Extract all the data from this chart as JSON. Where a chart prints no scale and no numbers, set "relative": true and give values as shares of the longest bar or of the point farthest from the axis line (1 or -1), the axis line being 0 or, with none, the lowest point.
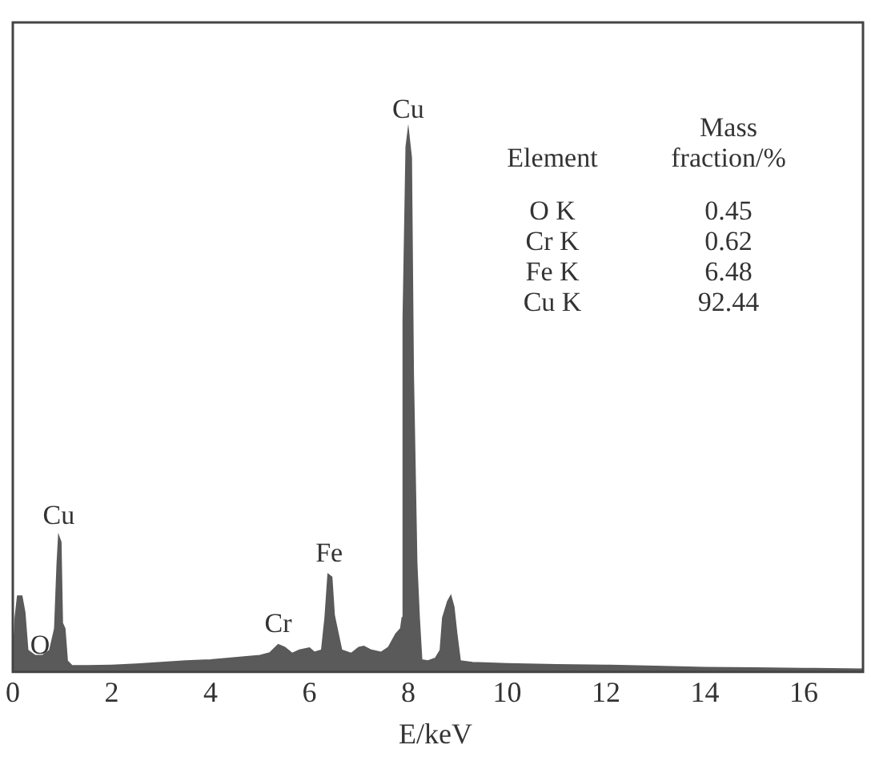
{
  "chart_data": {
    "type": "area",
    "xlabel": "E/keV",
    "relative": true,
    "tick_labels": "x",
    "xlim": [
      0,
      17.2
    ],
    "xticks": [
      0,
      2,
      4,
      6,
      8,
      10,
      12,
      14,
      16
    ],
    "series": [
      {
        "color": "#5a5a5a",
        "x": [
          0,
          0.05,
          0.1,
          0.18,
          0.24,
          0.3,
          0.45,
          0.6,
          0.75,
          0.85,
          0.9,
          0.93,
          0.97,
          1.0,
          1.05,
          1.1,
          1.2,
          1.5,
          2,
          2.5,
          3,
          3.5,
          4,
          4.5,
          5,
          5.2,
          5.37,
          5.5,
          5.65,
          5.8,
          6.0,
          6.1,
          6.25,
          6.32,
          6.38,
          6.45,
          6.5,
          6.58,
          6.65,
          6.85,
          7.0,
          7.1,
          7.25,
          7.45,
          7.6,
          7.75,
          7.85,
          7.88,
          7.9,
          7.96,
          8.0,
          8.06,
          8.1,
          8.17,
          8.22,
          8.27,
          8.4,
          8.55,
          8.65,
          8.7,
          8.8,
          8.86,
          8.92,
          8.98,
          9.05,
          9.3,
          10,
          11,
          12,
          13,
          14,
          15,
          16,
          17.2
        ],
        "values": [
          0,
          0.1,
          0.14,
          0.14,
          0.11,
          0.04,
          0.03,
          0.03,
          0.04,
          0.08,
          0.2,
          0.25,
          0.24,
          0.09,
          0.08,
          0.02,
          0.011,
          0.011,
          0.012,
          0.014,
          0.017,
          0.02,
          0.022,
          0.026,
          0.03,
          0.035,
          0.05,
          0.045,
          0.034,
          0.04,
          0.044,
          0.036,
          0.04,
          0.1,
          0.18,
          0.175,
          0.105,
          0.07,
          0.04,
          0.034,
          0.045,
          0.047,
          0.04,
          0.036,
          0.045,
          0.07,
          0.08,
          0.1,
          0.65,
          0.97,
          1.0,
          0.95,
          0.55,
          0.2,
          0.1,
          0.022,
          0.02,
          0.025,
          0.04,
          0.1,
          0.13,
          0.14,
          0.12,
          0.07,
          0.02,
          0.017,
          0.015,
          0.013,
          0.012,
          0.01,
          0.008,
          0.007,
          0.006,
          0.005
        ]
      }
    ],
    "annotations": [
      {
        "text": "Cu",
        "x": 8.0,
        "y": 1.0
      },
      {
        "text": "Cu",
        "x": 0.93,
        "y": 0.25
      },
      {
        "text": "Fe",
        "x": 6.4,
        "y": 0.18
      },
      {
        "text": "Cr",
        "x": 5.37,
        "y": 0.05
      },
      {
        "text": "O",
        "x": 0.55,
        "y": 0.01
      },
      "Element",
      "Mass fraction/%",
      "O K",
      "0.45",
      "Cr K",
      "0.62",
      "Fe K",
      "6.48",
      "Cu K",
      "92.44"
    ]
  }
}
